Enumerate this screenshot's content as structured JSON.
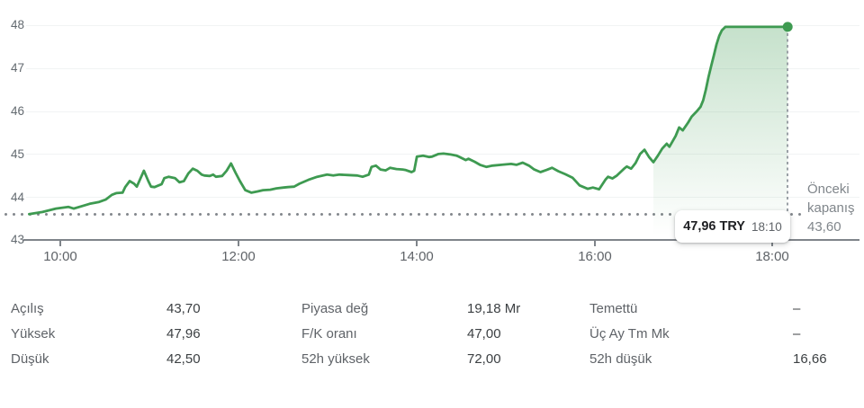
{
  "chart_data": {
    "type": "line",
    "title": "Intraday stock price",
    "ylim": [
      43,
      48
    ],
    "y_ticks": [
      "48",
      "47",
      "46",
      "45",
      "44",
      "43"
    ],
    "x_ticks": [
      "10:00",
      "12:00",
      "14:00",
      "16:00",
      "18:00"
    ],
    "x_tick_hours": [
      10,
      12,
      14,
      16,
      18
    ],
    "grid": true,
    "line_color": "#3e9a51",
    "previous_close": {
      "label": [
        "Önceki",
        "kapanış"
      ],
      "value_label": "43,60",
      "value": 43.6
    },
    "tooltip": {
      "price": "47,96 TRY",
      "time": "18:10"
    },
    "marker": {
      "t": 18.18,
      "v": 47.96
    },
    "area_start_t": 16.67,
    "series": [
      {
        "name": "price",
        "points": [
          [
            9.65,
            43.6
          ],
          [
            9.8,
            43.65
          ],
          [
            9.95,
            43.73
          ],
          [
            10.09,
            43.77
          ],
          [
            10.15,
            43.73
          ],
          [
            10.25,
            43.79
          ],
          [
            10.33,
            43.84
          ],
          [
            10.43,
            43.88
          ],
          [
            10.51,
            43.94
          ],
          [
            10.58,
            44.05
          ],
          [
            10.63,
            44.09
          ],
          [
            10.7,
            44.1
          ],
          [
            10.73,
            44.23
          ],
          [
            10.78,
            44.37
          ],
          [
            10.83,
            44.31
          ],
          [
            10.86,
            44.24
          ],
          [
            10.91,
            44.47
          ],
          [
            10.94,
            44.61
          ],
          [
            10.99,
            44.37
          ],
          [
            11.02,
            44.24
          ],
          [
            11.06,
            44.23
          ],
          [
            11.14,
            44.3
          ],
          [
            11.17,
            44.44
          ],
          [
            11.22,
            44.47
          ],
          [
            11.29,
            44.44
          ],
          [
            11.34,
            44.34
          ],
          [
            11.39,
            44.37
          ],
          [
            11.44,
            44.55
          ],
          [
            11.49,
            44.66
          ],
          [
            11.54,
            44.61
          ],
          [
            11.59,
            44.52
          ],
          [
            11.62,
            44.5
          ],
          [
            11.68,
            44.49
          ],
          [
            11.72,
            44.52
          ],
          [
            11.75,
            44.47
          ],
          [
            11.82,
            44.49
          ],
          [
            11.87,
            44.61
          ],
          [
            11.92,
            44.78
          ],
          [
            11.97,
            44.57
          ],
          [
            12.02,
            44.37
          ],
          [
            12.08,
            44.16
          ],
          [
            12.15,
            44.1
          ],
          [
            12.22,
            44.13
          ],
          [
            12.28,
            44.16
          ],
          [
            12.36,
            44.17
          ],
          [
            12.43,
            44.2
          ],
          [
            12.51,
            44.22
          ],
          [
            12.56,
            44.23
          ],
          [
            12.63,
            44.24
          ],
          [
            12.69,
            44.31
          ],
          [
            12.79,
            44.4
          ],
          [
            12.89,
            44.47
          ],
          [
            13.0,
            44.52
          ],
          [
            13.07,
            44.5
          ],
          [
            13.14,
            44.52
          ],
          [
            13.24,
            44.51
          ],
          [
            13.34,
            44.5
          ],
          [
            13.4,
            44.47
          ],
          [
            13.47,
            44.52
          ],
          [
            13.5,
            44.7
          ],
          [
            13.55,
            44.73
          ],
          [
            13.6,
            44.64
          ],
          [
            13.66,
            44.62
          ],
          [
            13.71,
            44.68
          ],
          [
            13.78,
            44.65
          ],
          [
            13.85,
            44.64
          ],
          [
            13.88,
            44.63
          ],
          [
            13.95,
            44.58
          ],
          [
            13.98,
            44.61
          ],
          [
            14.01,
            44.94
          ],
          [
            14.08,
            44.96
          ],
          [
            14.15,
            44.93
          ],
          [
            14.18,
            44.94
          ],
          [
            14.25,
            45.0
          ],
          [
            14.31,
            45.01
          ],
          [
            14.39,
            44.99
          ],
          [
            14.46,
            44.96
          ],
          [
            14.49,
            44.93
          ],
          [
            14.56,
            44.86
          ],
          [
            14.59,
            44.89
          ],
          [
            14.66,
            44.82
          ],
          [
            14.72,
            44.75
          ],
          [
            14.79,
            44.7
          ],
          [
            14.86,
            44.73
          ],
          [
            14.96,
            44.75
          ],
          [
            15.07,
            44.77
          ],
          [
            15.13,
            44.75
          ],
          [
            15.2,
            44.8
          ],
          [
            15.27,
            44.73
          ],
          [
            15.33,
            44.64
          ],
          [
            15.4,
            44.58
          ],
          [
            15.47,
            44.63
          ],
          [
            15.53,
            44.68
          ],
          [
            15.6,
            44.6
          ],
          [
            15.68,
            44.53
          ],
          [
            15.76,
            44.45
          ],
          [
            15.84,
            44.27
          ],
          [
            15.93,
            44.19
          ],
          [
            15.99,
            44.22
          ],
          [
            16.06,
            44.18
          ],
          [
            16.13,
            44.4
          ],
          [
            16.16,
            44.47
          ],
          [
            16.21,
            44.43
          ],
          [
            16.26,
            44.5
          ],
          [
            16.34,
            44.66
          ],
          [
            16.37,
            44.71
          ],
          [
            16.42,
            44.66
          ],
          [
            16.47,
            44.79
          ],
          [
            16.52,
            45.0
          ],
          [
            16.57,
            45.1
          ],
          [
            16.62,
            44.93
          ],
          [
            16.67,
            44.81
          ],
          [
            16.72,
            44.96
          ],
          [
            16.77,
            45.13
          ],
          [
            16.82,
            45.24
          ],
          [
            16.85,
            45.17
          ],
          [
            16.89,
            45.31
          ],
          [
            16.92,
            45.42
          ],
          [
            16.96,
            45.62
          ],
          [
            17.0,
            45.55
          ],
          [
            17.06,
            45.73
          ],
          [
            17.1,
            45.87
          ],
          [
            17.16,
            46.0
          ],
          [
            17.2,
            46.1
          ],
          [
            17.23,
            46.25
          ],
          [
            17.26,
            46.5
          ],
          [
            17.29,
            46.8
          ],
          [
            17.32,
            47.05
          ],
          [
            17.35,
            47.3
          ],
          [
            17.38,
            47.55
          ],
          [
            17.41,
            47.75
          ],
          [
            17.44,
            47.88
          ],
          [
            17.48,
            47.96
          ],
          [
            17.6,
            47.96
          ],
          [
            17.75,
            47.96
          ],
          [
            17.9,
            47.96
          ],
          [
            18.05,
            47.96
          ],
          [
            18.18,
            47.96
          ]
        ]
      }
    ]
  },
  "stats": {
    "columns": [
      {
        "rows": [
          {
            "label": "Açılış",
            "value": "43,70"
          },
          {
            "label": "Yüksek",
            "value": "47,96"
          },
          {
            "label": "Düşük",
            "value": "42,50"
          }
        ]
      },
      {
        "rows": [
          {
            "label": "Piyasa değ",
            "value": "19,18 Mr"
          },
          {
            "label": "F/K oranı",
            "value": "47,00"
          },
          {
            "label": "52h yüksek",
            "value": "72,00"
          }
        ]
      },
      {
        "rows": [
          {
            "label": "Temettü",
            "value": "–"
          },
          {
            "label": "Üç Ay Tm Mk",
            "value": "–"
          },
          {
            "label": "52h düşük",
            "value": "16,66"
          }
        ]
      }
    ]
  }
}
